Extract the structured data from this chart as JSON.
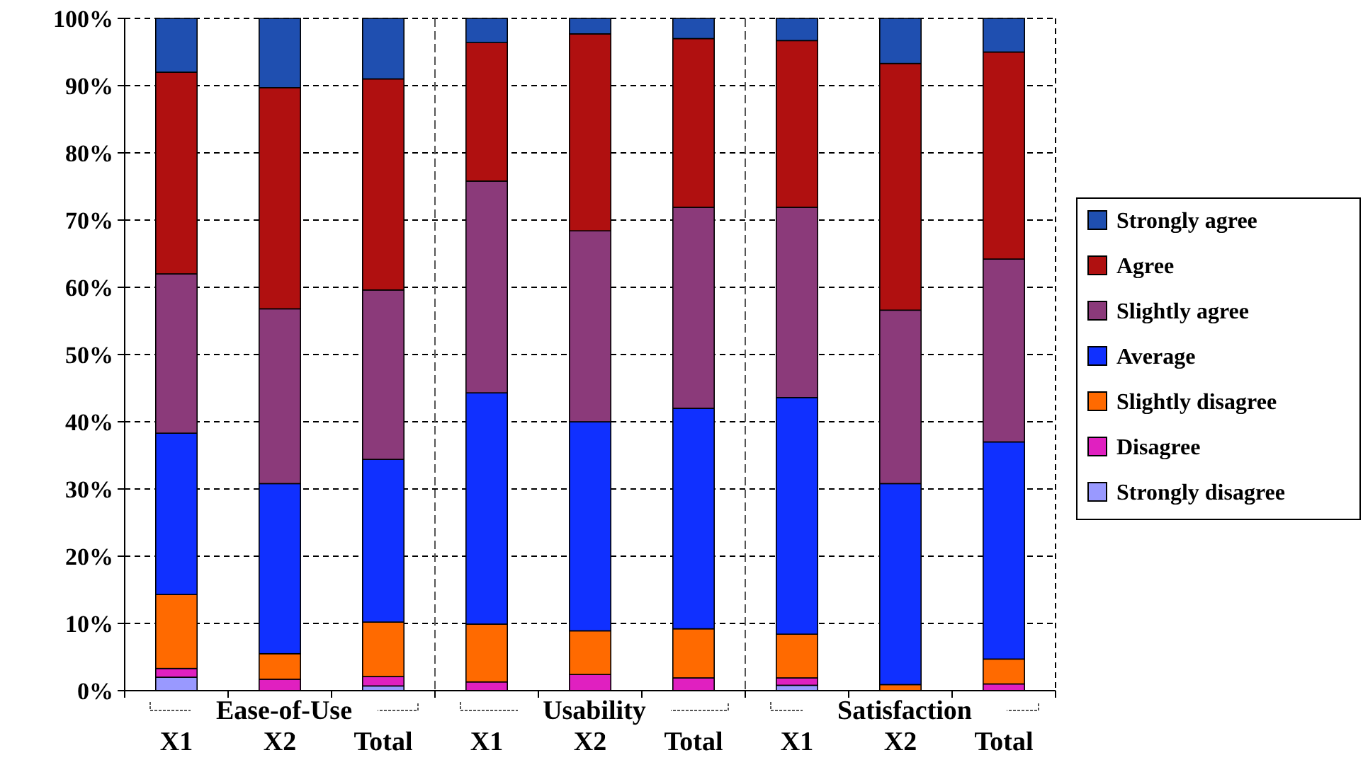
{
  "chart_data": {
    "type": "bar",
    "stacked": true,
    "categories": [
      "X1",
      "X2",
      "Total",
      "X1",
      "X2",
      "Total",
      "X1",
      "X2",
      "Total"
    ],
    "ylim": [
      0,
      100
    ],
    "yticks": [
      {
        "value": 0,
        "label": "0%"
      },
      {
        "value": 10,
        "label": "10%"
      },
      {
        "value": 20,
        "label": "20%"
      },
      {
        "value": 30,
        "label": "30%"
      },
      {
        "value": 40,
        "label": "40%"
      },
      {
        "value": 50,
        "label": "50%"
      },
      {
        "value": 60,
        "label": "60%"
      },
      {
        "value": 70,
        "label": "70%"
      },
      {
        "value": 80,
        "label": "80%"
      },
      {
        "value": 90,
        "label": "90%"
      },
      {
        "value": 100,
        "label": "100%"
      }
    ],
    "grid": "y",
    "legend": "right",
    "annotations": [
      "Ease-of-Use",
      "Usability",
      "Satisfaction"
    ],
    "series": [
      {
        "name": "Strongly disagree",
        "color": "#9999ff",
        "values": [
          2,
          0,
          0.7,
          0,
          0,
          0,
          0.8,
          0,
          0
        ]
      },
      {
        "name": "Disagree",
        "color": "#e020c0",
        "values": [
          1.3,
          1.7,
          1.4,
          1.3,
          2.4,
          1.9,
          1.1,
          0,
          1
        ]
      },
      {
        "name": "Slightly disagree",
        "color": "#ff6a00",
        "values": [
          11,
          3.8,
          8.1,
          8.6,
          6.5,
          7.3,
          6.5,
          0.9,
          3.7
        ]
      },
      {
        "name": "Average",
        "color": "#1030ff",
        "values": [
          24,
          25.3,
          24.2,
          34.4,
          31.1,
          32.8,
          35.2,
          29.9,
          32.3
        ]
      },
      {
        "name": "Slightly agree",
        "color": "#8b3a7a",
        "values": [
          23.7,
          26,
          25.2,
          31.5,
          28.4,
          29.9,
          28.3,
          25.8,
          27.2
        ]
      },
      {
        "name": "Agree",
        "color": "#b01010",
        "values": [
          30,
          32.9,
          31.4,
          20.6,
          29.3,
          25.1,
          24.8,
          36.7,
          30.8
        ]
      },
      {
        "name": "Strongly agree",
        "color": "#1f4fb0",
        "values": [
          8,
          10.3,
          9,
          3.6,
          2.3,
          3,
          3.3,
          6.7,
          5
        ]
      }
    ]
  }
}
